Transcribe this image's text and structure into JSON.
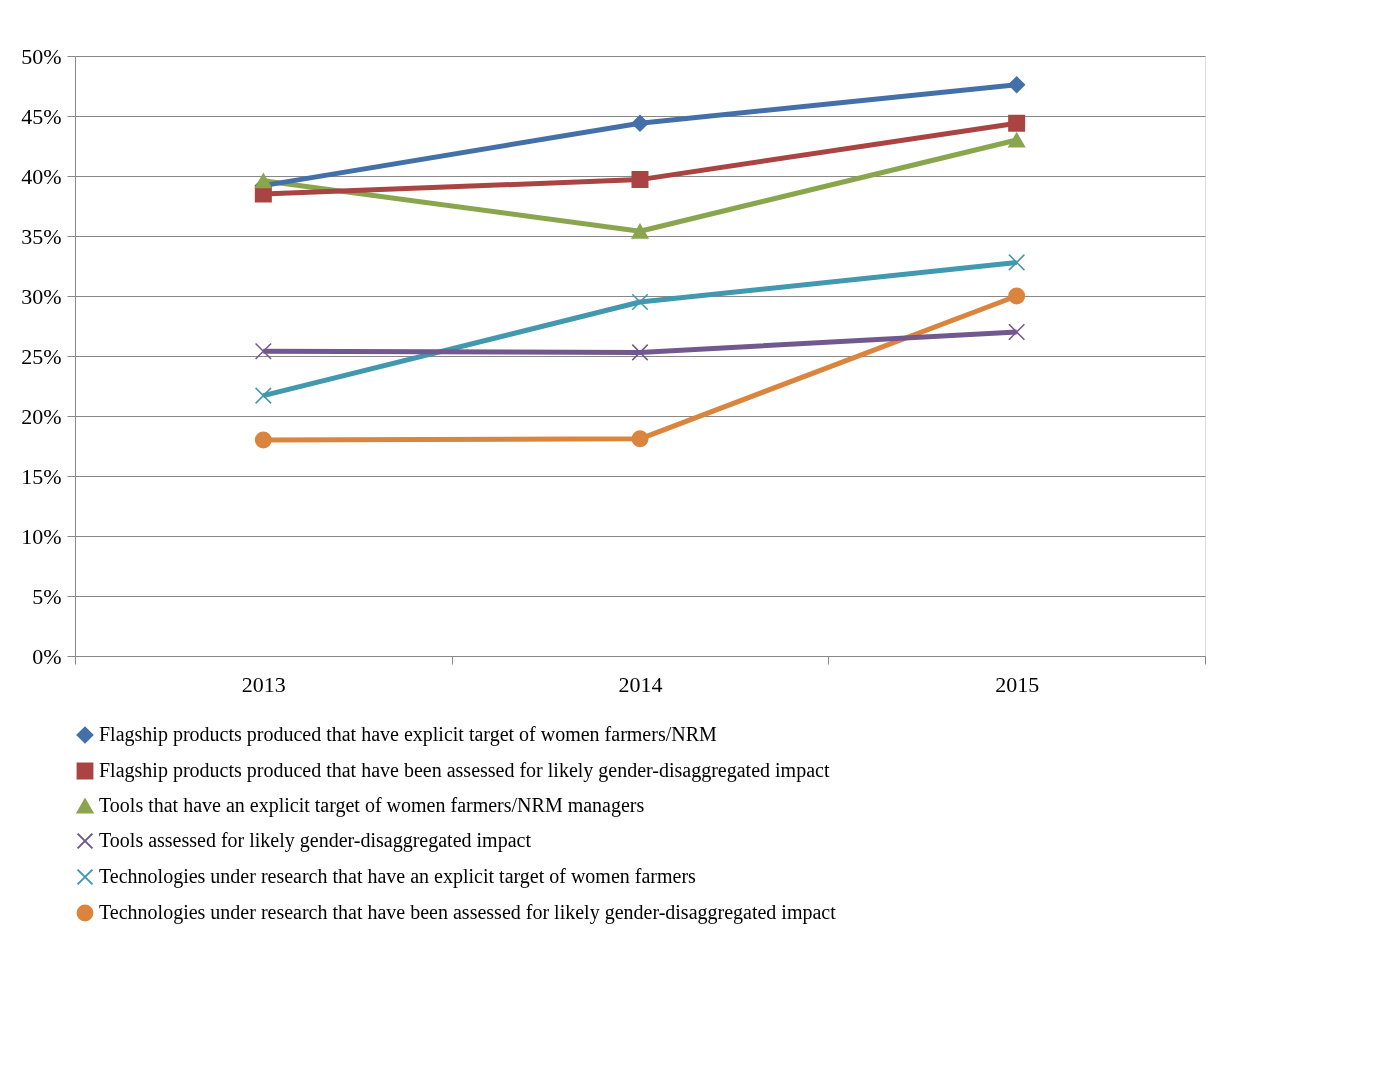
{
  "chart_data": {
    "type": "line",
    "categories": [
      "2013",
      "2014",
      "2015"
    ],
    "ylim": [
      0,
      50
    ],
    "yticks": [
      {
        "value": 0,
        "label": "0%"
      },
      {
        "value": 5,
        "label": "5%"
      },
      {
        "value": 10,
        "label": "10%"
      },
      {
        "value": 15,
        "label": "15%"
      },
      {
        "value": 20,
        "label": "20%"
      },
      {
        "value": 25,
        "label": "25%"
      },
      {
        "value": 30,
        "label": "30%"
      },
      {
        "value": 35,
        "label": "35%"
      },
      {
        "value": 40,
        "label": "40%"
      },
      {
        "value": 45,
        "label": "45%"
      },
      {
        "value": 50,
        "label": "50%"
      }
    ],
    "grid": "y",
    "legend": "bottom",
    "line_style": "solid",
    "series": [
      {
        "name": "Flagship products produced that have explicit target of women farmers/NRM",
        "color": "#4470aa",
        "marker": "diamond",
        "values": [
          39.2,
          44.4,
          47.6
        ]
      },
      {
        "name": "Flagship products produced that have been assessed for likely gender-disaggregated impact",
        "color": "#aa4442",
        "marker": "square",
        "values": [
          38.5,
          39.7,
          44.4
        ]
      },
      {
        "name": "Tools that have an explicit target of women farmers/NRM managers",
        "color": "#89a54e",
        "marker": "triangle",
        "values": [
          39.6,
          35.4,
          43.0
        ]
      },
      {
        "name": "Tools assessed for likely gender-disaggregated impact",
        "color": "#71588f",
        "marker": "cross",
        "values": [
          25.4,
          25.3,
          27.0
        ]
      },
      {
        "name": "Technologies under research that have an explicit target of women farmers",
        "color": "#4198af",
        "marker": "cross",
        "values": [
          21.7,
          29.5,
          32.8
        ]
      },
      {
        "name": "Technologies under research that have been assessed for likely gender-disaggregated impact",
        "color": "#db843d",
        "marker": "circle",
        "values": [
          18.0,
          18.1,
          30.0
        ]
      }
    ]
  }
}
